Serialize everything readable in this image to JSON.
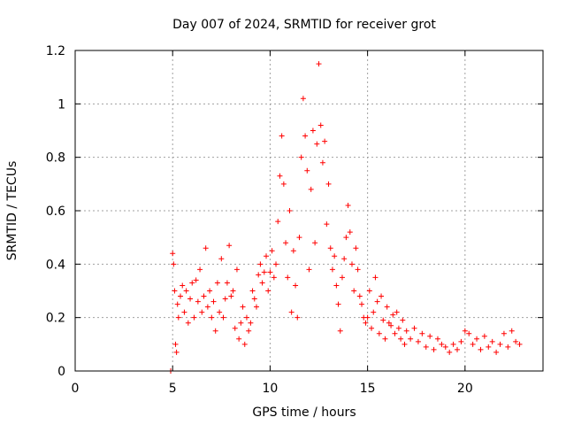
{
  "chart_data": {
    "type": "scatter",
    "title": "Day 007 of 2024, SRMTID for receiver grot",
    "xlabel": "GPS time / hours",
    "ylabel": "SRMTID / TECUs",
    "xlim": [
      0,
      24
    ],
    "ylim": [
      0,
      1.2
    ],
    "xticks": [
      0,
      5,
      10,
      15,
      20
    ],
    "xtick_labels": [
      "0",
      "5",
      "10",
      "15",
      "20"
    ],
    "yticks": [
      0,
      0.2,
      0.4,
      0.6,
      0.8,
      1.0,
      1.2
    ],
    "ytick_labels": [
      "0",
      "0.2",
      "0.4",
      "0.6",
      "0.8",
      "1",
      "1.2"
    ],
    "grid": true,
    "marker": "+",
    "colors": {
      "series": "#ff0000",
      "grid": "#a0a0a0",
      "axis": "#000000"
    },
    "series": [
      {
        "name": "SRMTID",
        "x": [
          4.9,
          5.0,
          5.05,
          5.1,
          5.15,
          5.2,
          5.25,
          5.3,
          5.4,
          5.5,
          5.6,
          5.7,
          5.8,
          5.9,
          6.0,
          6.1,
          6.2,
          6.3,
          6.4,
          6.5,
          6.6,
          6.7,
          6.8,
          6.9,
          7.0,
          7.1,
          7.2,
          7.3,
          7.4,
          7.5,
          7.6,
          7.7,
          7.8,
          7.9,
          8.0,
          8.1,
          8.2,
          8.3,
          8.4,
          8.5,
          8.6,
          8.7,
          8.8,
          8.9,
          9.0,
          9.1,
          9.2,
          9.3,
          9.4,
          9.5,
          9.6,
          9.7,
          9.8,
          9.9,
          10.0,
          10.1,
          10.2,
          10.3,
          10.4,
          10.5,
          10.6,
          10.7,
          10.8,
          10.9,
          11.0,
          11.1,
          11.2,
          11.3,
          11.4,
          11.5,
          11.6,
          11.7,
          11.8,
          11.9,
          12.0,
          12.1,
          12.2,
          12.3,
          12.4,
          12.5,
          12.6,
          12.7,
          12.8,
          12.9,
          13.0,
          13.1,
          13.2,
          13.3,
          13.4,
          13.5,
          13.6,
          13.7,
          13.8,
          13.9,
          14.0,
          14.1,
          14.2,
          14.3,
          14.4,
          14.5,
          14.6,
          14.7,
          14.8,
          14.9,
          15.0,
          15.1,
          15.2,
          15.3,
          15.4,
          15.5,
          15.6,
          15.7,
          15.8,
          15.9,
          16.0,
          16.1,
          16.2,
          16.3,
          16.4,
          16.5,
          16.6,
          16.7,
          16.8,
          16.9,
          17.0,
          17.2,
          17.4,
          17.6,
          17.8,
          18.0,
          18.2,
          18.4,
          18.6,
          18.8,
          19.0,
          19.2,
          19.4,
          19.6,
          19.8,
          20.0,
          20.2,
          20.4,
          20.6,
          20.8,
          21.0,
          21.2,
          21.4,
          21.6,
          21.8,
          22.0,
          22.2,
          22.4,
          22.6,
          22.8
        ],
        "y": [
          0.0,
          0.44,
          0.4,
          0.3,
          0.1,
          0.07,
          0.25,
          0.2,
          0.28,
          0.32,
          0.22,
          0.3,
          0.18,
          0.27,
          0.33,
          0.2,
          0.34,
          0.26,
          0.38,
          0.22,
          0.28,
          0.46,
          0.24,
          0.3,
          0.2,
          0.26,
          0.15,
          0.33,
          0.22,
          0.42,
          0.2,
          0.27,
          0.33,
          0.47,
          0.28,
          0.3,
          0.16,
          0.38,
          0.12,
          0.18,
          0.24,
          0.1,
          0.2,
          0.15,
          0.18,
          0.3,
          0.27,
          0.24,
          0.36,
          0.4,
          0.33,
          0.37,
          0.43,
          0.3,
          0.37,
          0.45,
          0.35,
          0.4,
          0.56,
          0.73,
          0.88,
          0.7,
          0.48,
          0.35,
          0.6,
          0.22,
          0.45,
          0.32,
          0.2,
          0.5,
          0.8,
          1.02,
          0.88,
          0.75,
          0.38,
          0.68,
          0.9,
          0.48,
          0.85,
          1.15,
          0.92,
          0.78,
          0.86,
          0.55,
          0.7,
          0.46,
          0.38,
          0.43,
          0.32,
          0.25,
          0.15,
          0.35,
          0.42,
          0.5,
          0.62,
          0.52,
          0.4,
          0.3,
          0.46,
          0.38,
          0.28,
          0.25,
          0.2,
          0.18,
          0.2,
          0.3,
          0.16,
          0.22,
          0.35,
          0.26,
          0.14,
          0.28,
          0.19,
          0.12,
          0.24,
          0.18,
          0.17,
          0.21,
          0.14,
          0.22,
          0.16,
          0.12,
          0.19,
          0.1,
          0.15,
          0.12,
          0.16,
          0.11,
          0.14,
          0.09,
          0.13,
          0.08,
          0.12,
          0.1,
          0.09,
          0.07,
          0.1,
          0.08,
          0.11,
          0.15,
          0.14,
          0.1,
          0.12,
          0.08,
          0.13,
          0.09,
          0.11,
          0.07,
          0.1,
          0.14,
          0.09,
          0.15,
          0.11,
          0.1
        ]
      }
    ]
  }
}
